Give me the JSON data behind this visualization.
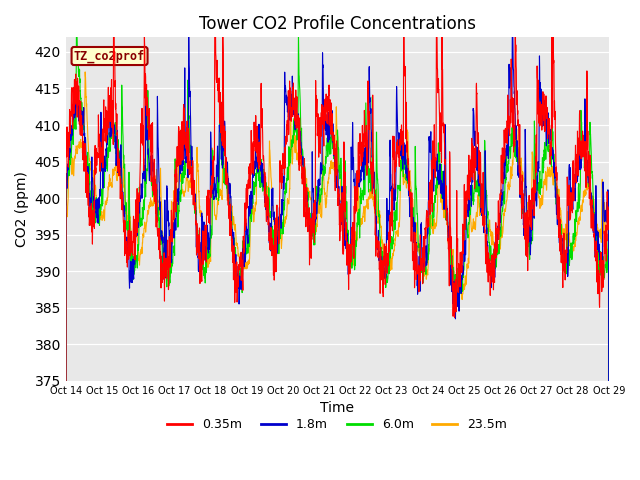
{
  "title": "Tower CO2 Profile Concentrations",
  "ylabel": "CO2 (ppm)",
  "xlabel": "Time",
  "label_box_text": "TZ_co2prof",
  "ylim": [
    375,
    422
  ],
  "yticks": [
    375,
    380,
    385,
    390,
    395,
    400,
    405,
    410,
    415,
    420
  ],
  "series": {
    "0.35m": {
      "color": "#ff0000",
      "lw": 0.8
    },
    "1.8m": {
      "color": "#0000cc",
      "lw": 0.8
    },
    "6.0m": {
      "color": "#00dd00",
      "lw": 0.8
    },
    "23.5m": {
      "color": "#ffaa00",
      "lw": 0.8
    }
  },
  "x_tick_labels": [
    "Oct 14",
    "Oct 15",
    "Oct 16",
    "Oct 17",
    "Oct 18",
    "Oct 19",
    "Oct 20",
    "Oct 21",
    "Oct 22",
    "Oct 23",
    "Oct 24",
    "Oct 25",
    "Oct 26",
    "Oct 27",
    "Oct 28",
    "Oct 29"
  ],
  "bg_color": "#e8e8e8",
  "grid_color": "#ffffff",
  "n_points": 3000,
  "seed": 42
}
